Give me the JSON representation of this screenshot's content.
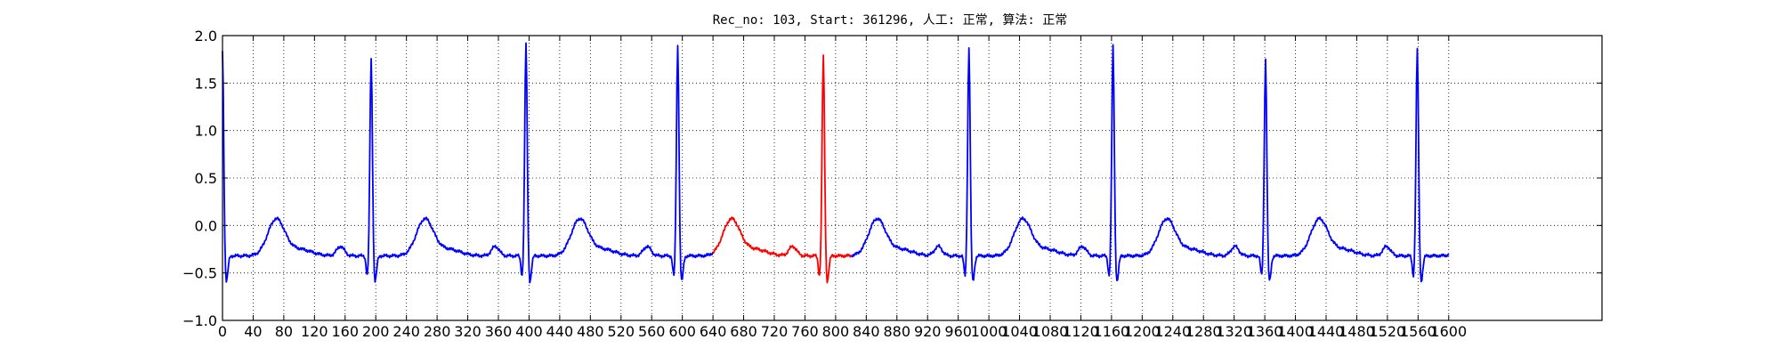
{
  "chart_data": {
    "type": "line",
    "title": "Rec_no: 103, Start: 361296, 人工: 正常, 算法: 正常",
    "xlabel": "",
    "ylabel": "",
    "xlim": [
      0,
      1800
    ],
    "ylim": [
      -1.0,
      2.0
    ],
    "grid": true,
    "yticks": [
      -1.0,
      -0.5,
      0.0,
      0.5,
      1.0,
      1.5,
      2.0
    ],
    "ytick_labels": [
      "−1.0",
      "−0.5",
      "0.0",
      "0.5",
      "1.0",
      "1.5",
      "2.0"
    ],
    "xticks": [
      0,
      40,
      80,
      120,
      160,
      200,
      240,
      280,
      320,
      360,
      400,
      440,
      480,
      520,
      560,
      600,
      640,
      680,
      720,
      760,
      800,
      840,
      880,
      920,
      960,
      1000,
      1040,
      1080,
      1120,
      1160,
      1200,
      1240,
      1280,
      1320,
      1360,
      1400,
      1440,
      1480,
      1520,
      1560,
      1600
    ],
    "n_samples": 1600,
    "beat": {
      "r_peak_positions": [
        0,
        194,
        396,
        594,
        784,
        974,
        1162,
        1361,
        1559
      ],
      "r_peak_amplitudes": [
        1.85,
        1.77,
        1.93,
        1.91,
        1.8,
        1.89,
        1.9,
        1.76,
        1.88
      ],
      "baseline": -0.32,
      "p_wave_amplitude": 0.1,
      "t_wave_amplitude": 0.38,
      "q_amplitude": -0.22,
      "s_amplitude": -0.28
    },
    "series": [
      {
        "color": "#0000ff",
        "segments": [
          [
            0,
            640
          ],
          [
            820,
            1600
          ]
        ]
      },
      {
        "color": "#ff0000",
        "segments": [
          [
            640,
            820
          ]
        ]
      }
    ]
  }
}
